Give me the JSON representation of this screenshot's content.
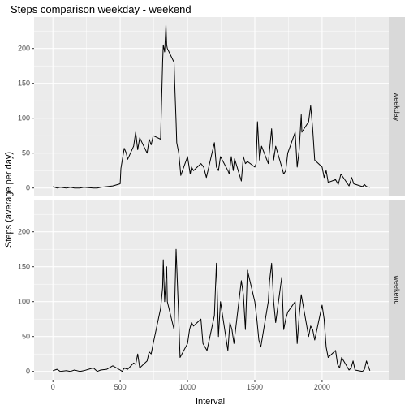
{
  "chart_data": {
    "type": "line",
    "title": "Steps comparison weekday - weekend",
    "xlabel": "Interval",
    "ylabel": "Steps (average per day)",
    "xlim": [
      -140,
      2495
    ],
    "ylim": [
      -12,
      245
    ],
    "x_ticks": [
      0,
      500,
      1000,
      1500,
      2000
    ],
    "y_ticks": [
      0,
      50,
      100,
      150,
      200
    ],
    "colors": {
      "panel_bg": "#ebebeb",
      "grid_major": "#ffffff",
      "strip_bg": "#d9d9d9",
      "line": "#000000"
    },
    "panels": [
      {
        "facet": "weekday",
        "x": [
          0,
          30,
          55,
          100,
          130,
          160,
          200,
          230,
          300,
          330,
          355,
          400,
          445,
          500,
          505,
          530,
          545,
          555,
          600,
          615,
          630,
          645,
          700,
          715,
          730,
          745,
          800,
          815,
          820,
          830,
          840,
          845,
          850,
          900,
          905,
          915,
          920,
          935,
          945,
          950,
          1000,
          1020,
          1030,
          1045,
          1100,
          1120,
          1140,
          1200,
          1215,
          1230,
          1245,
          1300,
          1310,
          1325,
          1340,
          1350,
          1400,
          1415,
          1430,
          1445,
          1500,
          1510,
          1520,
          1535,
          1550,
          1600,
          1610,
          1625,
          1640,
          1655,
          1700,
          1715,
          1730,
          1745,
          1800,
          1815,
          1830,
          1845,
          1850,
          1900,
          1915,
          1930,
          1945,
          2000,
          2015,
          2030,
          2045,
          2100,
          2120,
          2140,
          2200,
          2220,
          2235,
          2300,
          2315,
          2330,
          2355
        ],
        "y": [
          2,
          0,
          1,
          0,
          1,
          0,
          0,
          1,
          0,
          0,
          1,
          2,
          3,
          6,
          28,
          57,
          50,
          41,
          60,
          80,
          55,
          72,
          50,
          70,
          62,
          75,
          70,
          180,
          205,
          195,
          234,
          205,
          200,
          180,
          150,
          95,
          65,
          50,
          30,
          18,
          45,
          20,
          30,
          25,
          35,
          30,
          15,
          65,
          30,
          25,
          45,
          25,
          20,
          45,
          25,
          42,
          10,
          45,
          35,
          38,
          30,
          35,
          95,
          40,
          60,
          35,
          55,
          85,
          40,
          60,
          30,
          20,
          25,
          50,
          80,
          30,
          55,
          105,
          80,
          95,
          118,
          85,
          40,
          30,
          15,
          25,
          8,
          12,
          5,
          20,
          3,
          15,
          6,
          2,
          5,
          2,
          1
        ]
      },
      {
        "facet": "weekend",
        "x": [
          0,
          30,
          55,
          100,
          130,
          160,
          200,
          230,
          300,
          330,
          355,
          400,
          445,
          500,
          515,
          530,
          555,
          600,
          615,
          630,
          645,
          700,
          715,
          730,
          745,
          800,
          815,
          820,
          830,
          845,
          850,
          900,
          915,
          930,
          945,
          1000,
          1015,
          1030,
          1045,
          1100,
          1115,
          1130,
          1145,
          1200,
          1215,
          1230,
          1245,
          1300,
          1315,
          1330,
          1345,
          1400,
          1415,
          1430,
          1445,
          1500,
          1515,
          1530,
          1545,
          1600,
          1610,
          1625,
          1640,
          1655,
          1700,
          1715,
          1730,
          1745,
          1800,
          1815,
          1830,
          1845,
          1900,
          1915,
          1930,
          1945,
          2000,
          2015,
          2030,
          2045,
          2100,
          2115,
          2130,
          2145,
          2200,
          2215,
          2230,
          2245,
          2300,
          2315,
          2330,
          2355
        ],
        "y": [
          1,
          3,
          0,
          1,
          0,
          2,
          0,
          1,
          5,
          0,
          2,
          3,
          8,
          2,
          0,
          5,
          3,
          12,
          10,
          25,
          5,
          15,
          28,
          25,
          40,
          90,
          120,
          160,
          100,
          150,
          100,
          60,
          175,
          100,
          20,
          40,
          60,
          70,
          65,
          75,
          40,
          35,
          30,
          80,
          155,
          50,
          100,
          30,
          70,
          60,
          40,
          130,
          110,
          60,
          145,
          100,
          75,
          45,
          35,
          100,
          130,
          155,
          100,
          70,
          135,
          60,
          75,
          85,
          100,
          40,
          80,
          110,
          50,
          65,
          60,
          45,
          95,
          75,
          35,
          20,
          30,
          10,
          5,
          20,
          2,
          5,
          15,
          2,
          0,
          3,
          15,
          1
        ]
      }
    ]
  }
}
